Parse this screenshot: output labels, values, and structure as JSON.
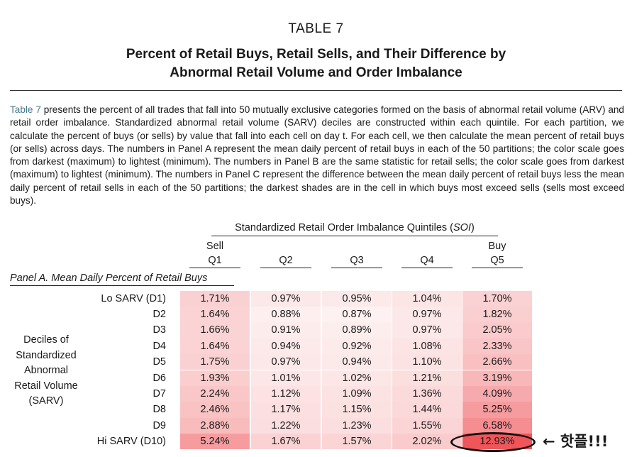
{
  "header": {
    "table_label": "TABLE 7",
    "title_line1": "Percent of Retail Buys, Retail Sells, and Their Difference by",
    "title_line2": "Abnormal Retail Volume and Order Imbalance"
  },
  "description": {
    "ref": "Table 7",
    "text": " presents the percent of all trades that fall into 50 mutually exclusive categories formed on the basis of abnormal retail volume (ARV) and retail order imbalance. Standardized abnormal retail volume (SARV) deciles are constructed within each quintile. For each partition, we calculate the percent of buys (or sells) by value that fall into each cell on day t. For each cell, we then calculate the mean percent of retail buys (or sells) across days. The numbers in Panel A represent the mean daily percent of retail buys in each of the 50 partitions; the color scale goes from darkest (maximum) to lightest (minimum). The numbers in Panel B are the same statistic for retail sells; the color scale goes from darkest (maximum) to lightest (minimum). The numbers in Panel C represent the difference between the mean daily percent of retail buys less the mean daily percent of retail sells in each of the 50 partitions; the darkest shades are in the cell in which buys most exceed sells (sells most exceed buys)."
  },
  "table": {
    "soi_header_text": "Standardized Retail Order Imbalance Quintiles (",
    "soi_header_abbr": "SOI",
    "soi_header_close": ")",
    "columns": [
      {
        "top": "Sell",
        "label": "Q1"
      },
      {
        "top": "",
        "label": "Q2"
      },
      {
        "top": "",
        "label": "Q3"
      },
      {
        "top": "",
        "label": "Q4"
      },
      {
        "top": "Buy",
        "label": "Q5"
      }
    ],
    "panel_label": "Panel A. Mean Daily Percent of Retail Buys",
    "side_label": [
      "Deciles of",
      "Standardized",
      "Abnormal",
      "Retail Volume",
      "(SARV)"
    ],
    "rows": [
      {
        "label": "Lo SARV (D1)",
        "cells": [
          "1.71%",
          "0.97%",
          "0.95%",
          "1.04%",
          "1.70%"
        ]
      },
      {
        "label": "D2",
        "cells": [
          "1.64%",
          "0.88%",
          "0.87%",
          "0.97%",
          "1.82%"
        ]
      },
      {
        "label": "D3",
        "cells": [
          "1.66%",
          "0.91%",
          "0.89%",
          "0.97%",
          "2.05%"
        ]
      },
      {
        "label": "D4",
        "cells": [
          "1.64%",
          "0.94%",
          "0.92%",
          "1.08%",
          "2.33%"
        ]
      },
      {
        "label": "D5",
        "cells": [
          "1.75%",
          "0.97%",
          "0.94%",
          "1.10%",
          "2.66%"
        ]
      },
      {
        "label": "D6",
        "cells": [
          "1.93%",
          "1.01%",
          "1.02%",
          "1.21%",
          "3.19%"
        ]
      },
      {
        "label": "D7",
        "cells": [
          "2.24%",
          "1.12%",
          "1.09%",
          "1.36%",
          "4.09%"
        ]
      },
      {
        "label": "D8",
        "cells": [
          "2.46%",
          "1.17%",
          "1.15%",
          "1.44%",
          "5.25%"
        ]
      },
      {
        "label": "D9",
        "cells": [
          "2.88%",
          "1.22%",
          "1.23%",
          "1.55%",
          "6.58%"
        ]
      },
      {
        "label": "Hi SARV (D10)",
        "cells": [
          "5.24%",
          "1.67%",
          "1.57%",
          "2.02%",
          "12.93%"
        ]
      }
    ],
    "color_scale": {
      "min_color": "#fdf1f1",
      "max_color": "#f0555a"
    }
  },
  "annotation": {
    "text": "← 핫플!!!"
  }
}
